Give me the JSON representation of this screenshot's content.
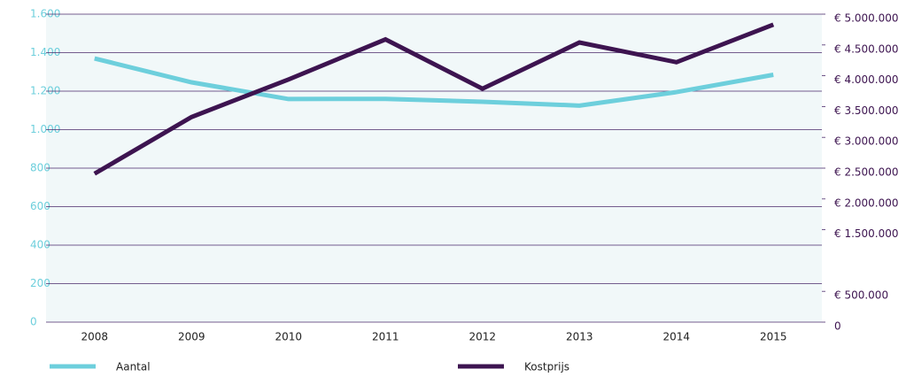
{
  "chart_data": {
    "type": "line",
    "categories": [
      "2008",
      "2009",
      "2010",
      "2011",
      "2012",
      "2013",
      "2014",
      "2015"
    ],
    "series": [
      {
        "name": "Aantal",
        "color": "#6dcfdc",
        "values": [
          1370,
          1246,
          1159,
          1160,
          1145,
          1125,
          1195,
          1285
        ]
      },
      {
        "name": "Kostprijs",
        "color": "#3d1450",
        "axis": "y2",
        "values": [
          2410000,
          3330000,
          3940000,
          4590000,
          3790000,
          4540000,
          4220000,
          4830000
        ]
      }
    ],
    "ylim": [
      0,
      1600
    ],
    "yticks": [
      0,
      200,
      400,
      600,
      800,
      {
        "value": 1000,
        "label": "1.000"
      },
      {
        "value": 1200,
        "label": "1.200"
      },
      {
        "value": 1400,
        "label": "1.400"
      },
      {
        "value": 1600,
        "label": "1.600"
      }
    ],
    "y2lim": [
      0,
      5000000
    ],
    "y2ticks": [
      0,
      {
        "value": 500000,
        "label": "€ 500.000"
      },
      {
        "value": 1500000,
        "label": "€ 1.500.000"
      },
      {
        "value": 2000000,
        "label": "€ 2.000.000"
      },
      {
        "value": 2500000,
        "label": "€ 2.500.000"
      },
      {
        "value": 3000000,
        "label": "€ 3.000.000"
      },
      {
        "value": 3500000,
        "label": "€ 3.500.000"
      },
      {
        "value": 4000000,
        "label": "€ 4.000.000"
      },
      {
        "value": 4500000,
        "label": "€ 4.500.000"
      },
      {
        "value": 5000000,
        "label": "€ 5.000.000"
      }
    ],
    "grid": true,
    "legend": "bottom"
  }
}
